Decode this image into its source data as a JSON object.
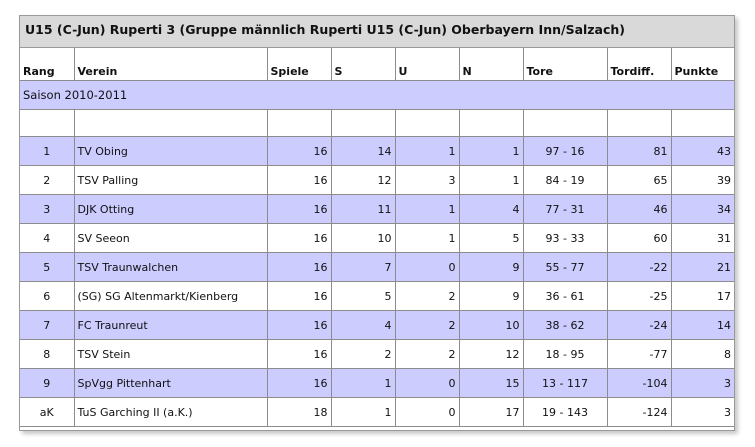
{
  "title": "U15 (C-Jun) Ruperti 3 (Gruppe männlich Ruperti U15 (C-Jun) Oberbayern Inn/Salzach)",
  "headers": [
    "Rang",
    "Verein",
    "Spiele",
    "S",
    "U",
    "N",
    "Tore",
    "Tordiff.",
    "Punkte"
  ],
  "season": "Saison 2010-2011",
  "rows": [
    {
      "rang": "1",
      "verein": "TV Obing",
      "spiele": "16",
      "s": "14",
      "u": "1",
      "n": "1",
      "tore": "97 - 16",
      "diff": "81",
      "punkte": "43"
    },
    {
      "rang": "2",
      "verein": "TSV Palling",
      "spiele": "16",
      "s": "12",
      "u": "3",
      "n": "1",
      "tore": "84 - 19",
      "diff": "65",
      "punkte": "39"
    },
    {
      "rang": "3",
      "verein": "DJK Otting",
      "spiele": "16",
      "s": "11",
      "u": "1",
      "n": "4",
      "tore": "77 - 31",
      "diff": "46",
      "punkte": "34"
    },
    {
      "rang": "4",
      "verein": "SV Seeon",
      "spiele": "16",
      "s": "10",
      "u": "1",
      "n": "5",
      "tore": "93 - 33",
      "diff": "60",
      "punkte": "31"
    },
    {
      "rang": "5",
      "verein": "TSV Traunwalchen",
      "spiele": "16",
      "s": "7",
      "u": "0",
      "n": "9",
      "tore": "55 - 77",
      "diff": "-22",
      "punkte": "21"
    },
    {
      "rang": "6",
      "verein": "(SG) SG Altenmarkt/Kienberg",
      "spiele": "16",
      "s": "5",
      "u": "2",
      "n": "9",
      "tore": "36 - 61",
      "diff": "-25",
      "punkte": "17"
    },
    {
      "rang": "7",
      "verein": "FC Traunreut",
      "spiele": "16",
      "s": "4",
      "u": "2",
      "n": "10",
      "tore": "38 - 62",
      "diff": "-24",
      "punkte": "14"
    },
    {
      "rang": "8",
      "verein": "TSV Stein",
      "spiele": "16",
      "s": "2",
      "u": "2",
      "n": "12",
      "tore": "18 - 95",
      "diff": "-77",
      "punkte": "8"
    },
    {
      "rang": "9",
      "verein": "SpVgg Pittenhart",
      "spiele": "16",
      "s": "1",
      "u": "0",
      "n": "15",
      "tore": "13 - 117",
      "diff": "-104",
      "punkte": "3"
    },
    {
      "rang": "aK",
      "verein": "TuS Garching II (a.K.)",
      "spiele": "18",
      "s": "1",
      "u": "0",
      "n": "17",
      "tore": "19 - 143",
      "diff": "-124",
      "punkte": "3"
    }
  ]
}
